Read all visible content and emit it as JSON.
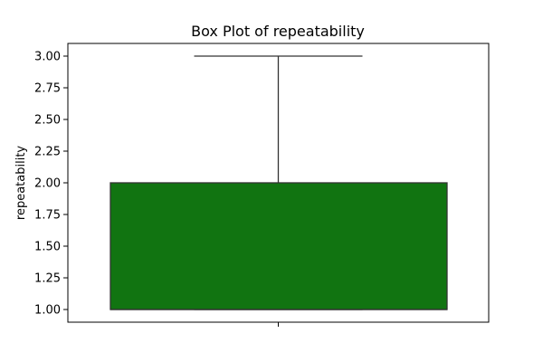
{
  "chart_data": {
    "type": "box",
    "title": "Box Plot of repeatability",
    "xlabel": "",
    "ylabel": "repeatability",
    "ylim": [
      0.9,
      3.1
    ],
    "yticks": [
      1.0,
      1.25,
      1.5,
      1.75,
      2.0,
      2.25,
      2.5,
      2.75,
      3.0
    ],
    "ytick_labels": [
      "1.00",
      "1.25",
      "1.50",
      "1.75",
      "2.00",
      "2.25",
      "2.50",
      "2.75",
      "3.00"
    ],
    "grid": false,
    "box": {
      "whisker_low": 1.0,
      "q1": 1.0,
      "median": 1.0,
      "q3": 2.0,
      "whisker_high": 3.0
    },
    "colors": {
      "box_fill": "#117411",
      "line": "#333333",
      "axes": "#000000"
    }
  }
}
